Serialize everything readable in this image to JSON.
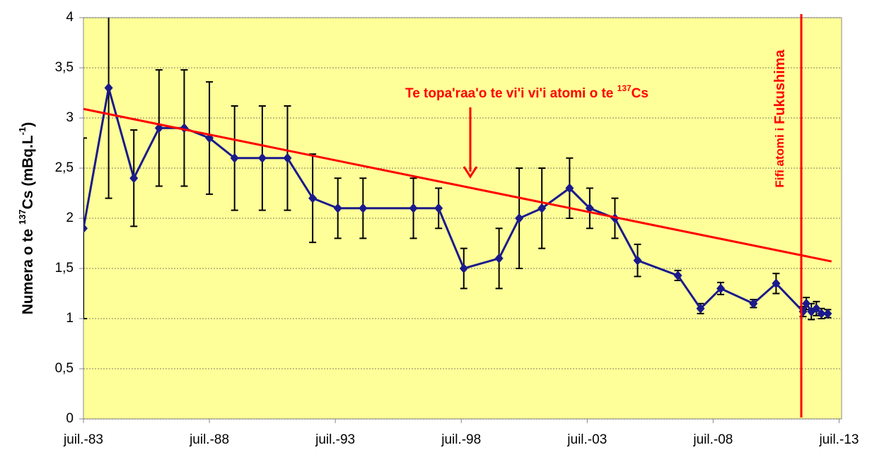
{
  "chart_data": {
    "type": "line",
    "ylabel": [
      "Numera o te ",
      "137",
      "Cs (mBq.L",
      "-1",
      ")"
    ],
    "xlim": [
      1983.5,
      2013.6
    ],
    "xticks": [
      {
        "value": 1983.5,
        "label": "juil.-83"
      },
      {
        "value": 1988.5,
        "label": "juil.-88"
      },
      {
        "value": 1993.5,
        "label": "juil.-93"
      },
      {
        "value": 1998.5,
        "label": "juil.-98"
      },
      {
        "value": 2003.5,
        "label": "juil.-03"
      },
      {
        "value": 2008.5,
        "label": "juil.-08"
      },
      {
        "value": 2013.5,
        "label": "juil.-13"
      }
    ],
    "ylim": [
      0,
      4
    ],
    "yticks": [
      0,
      {
        "value": 0.5,
        "label": "0,5"
      },
      1,
      {
        "value": 1.5,
        "label": "1,5"
      },
      2,
      {
        "value": 2.5,
        "label": "2,5"
      },
      3,
      {
        "value": 3.5,
        "label": "3,5"
      },
      4
    ],
    "grid": true,
    "background": "#ffff99",
    "series": [
      {
        "color": "#1a1a8c",
        "x": [
          1983.5,
          1984.5,
          1985.5,
          1986.5,
          1987.5,
          1988.5,
          1989.5,
          1990.6,
          1991.6,
          1992.6,
          1993.6,
          1994.6,
          1996.6,
          1997.6,
          1998.6,
          2000.0,
          2000.8,
          2001.7,
          2002.8,
          2003.6,
          2004.6,
          2005.5,
          2007.1,
          2008.0,
          2008.8,
          2010.1,
          2011.0,
          2012.07,
          2012.2,
          2012.4,
          2012.6,
          2012.8,
          2013.05
        ],
        "values": [
          1.9,
          3.3,
          2.4,
          2.9,
          2.9,
          2.8,
          2.6,
          2.6,
          2.6,
          2.2,
          2.1,
          2.1,
          2.1,
          2.1,
          1.5,
          1.6,
          2.0,
          2.1,
          2.3,
          2.1,
          2.0,
          1.58,
          1.43,
          1.1,
          1.3,
          1.15,
          1.35,
          1.07,
          1.15,
          1.07,
          1.1,
          1.05,
          1.05
        ],
        "errors": [
          0.9,
          1.1,
          0.48,
          0.58,
          0.58,
          0.56,
          0.52,
          0.52,
          0.52,
          0.44,
          0.3,
          0.3,
          0.3,
          0.2,
          0.2,
          0.3,
          0.5,
          0.4,
          0.3,
          0.2,
          0.2,
          0.16,
          0.05,
          0.05,
          0.06,
          0.04,
          0.1,
          0.05,
          0.06,
          0.08,
          0.07,
          0.05,
          0.04
        ]
      }
    ],
    "trend": {
      "color": "#ff0000",
      "x": [
        1983.5,
        2013.2
      ],
      "values": [
        3.09,
        1.57
      ]
    },
    "trend_label": [
      "Te topa'raa'o te vi'i vi'i atomi o te ",
      "137",
      "Cs"
    ],
    "vline": {
      "x": 2012.0,
      "color": "#ff0000",
      "label": [
        "Fifi atomi i ",
        "Fukushima"
      ]
    }
  }
}
